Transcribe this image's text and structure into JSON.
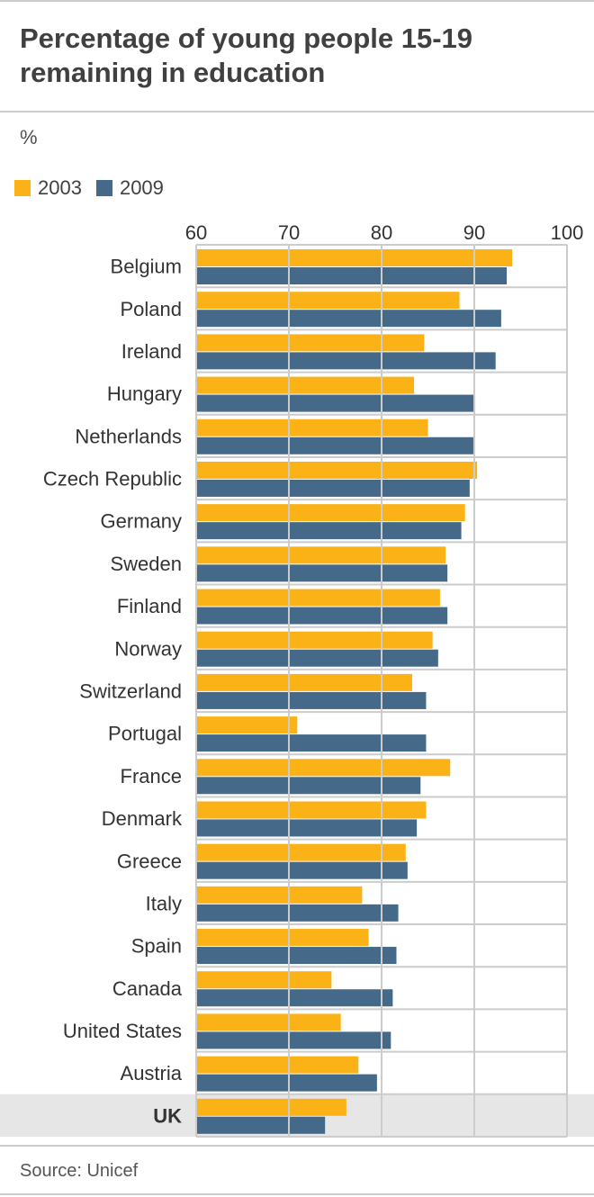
{
  "title": "Percentage of young people 15-19 remaining in education",
  "source": "Source: Unicef",
  "colors": {
    "series2003": "#fbb217",
    "series2009": "#456988",
    "highlight_band": "#e6e6e6",
    "grid": "#cccccc"
  },
  "chart_data": {
    "type": "bar",
    "orientation": "horizontal",
    "title": "Percentage of young people 15-19 remaining in education",
    "unit_label": "%",
    "xlabel": "",
    "ylabel": "",
    "xlim": [
      60,
      100
    ],
    "xticks": [
      60,
      70,
      80,
      90,
      100
    ],
    "legend_position": "top-left",
    "categories": [
      "Belgium",
      "Poland",
      "Ireland",
      "Hungary",
      "Netherlands",
      "Czech Republic",
      "Germany",
      "Sweden",
      "Finland",
      "Norway",
      "Switzerland",
      "Portugal",
      "France",
      "Denmark",
      "Greece",
      "Italy",
      "Spain",
      "Canada",
      "United States",
      "Austria",
      "UK"
    ],
    "highlight": "UK",
    "series": [
      {
        "name": "2003",
        "values": [
          94.1,
          88.4,
          84.6,
          83.5,
          85.0,
          90.3,
          89.0,
          86.9,
          86.3,
          85.5,
          83.3,
          70.9,
          87.4,
          84.8,
          82.6,
          77.9,
          78.6,
          74.6,
          75.6,
          77.5,
          76.2
        ]
      },
      {
        "name": "2009",
        "values": [
          93.5,
          92.9,
          92.3,
          90.1,
          89.9,
          89.5,
          88.6,
          87.1,
          87.1,
          86.1,
          84.8,
          84.8,
          84.2,
          83.8,
          82.8,
          81.8,
          81.6,
          81.2,
          81.0,
          79.5,
          73.9
        ]
      }
    ]
  }
}
